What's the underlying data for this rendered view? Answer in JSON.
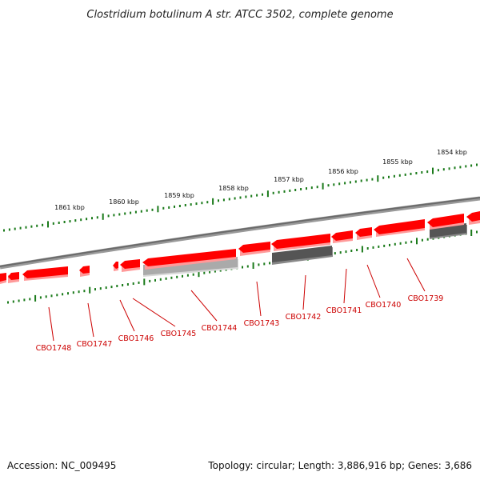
{
  "header": {
    "title": "Clostridium botulinum A str. ATCC 3502, complete genome"
  },
  "scale": {
    "ticks": [
      {
        "label": "1861 kbp"
      },
      {
        "label": "1860 kbp"
      },
      {
        "label": "1859 kbp"
      },
      {
        "label": "1858 kbp"
      },
      {
        "label": "1857 kbp"
      },
      {
        "label": "1856 kbp"
      },
      {
        "label": "1855 kbp"
      },
      {
        "label": "1854 kbp"
      }
    ]
  },
  "genes": {
    "labels": [
      "CBO1748",
      "CBO1747",
      "CBO1746",
      "CBO1745",
      "CBO1744",
      "CBO1743",
      "CBO1742",
      "CBO1741",
      "CBO1740",
      "CBO1739"
    ]
  },
  "footer": {
    "accession": "Accession: NC_009495",
    "summary": "Topology: circular; Length: 3,886,916 bp; Genes: 3,686"
  },
  "colors": {
    "gene_red": "#ff0000",
    "gene_shadow": "#ff9999",
    "gene_dark_gray": "#555555",
    "gene_light_gray": "#aaaaaa",
    "backbone": "#777777",
    "tick_green": "#1a7a1a",
    "label_red": "#cc0000"
  }
}
